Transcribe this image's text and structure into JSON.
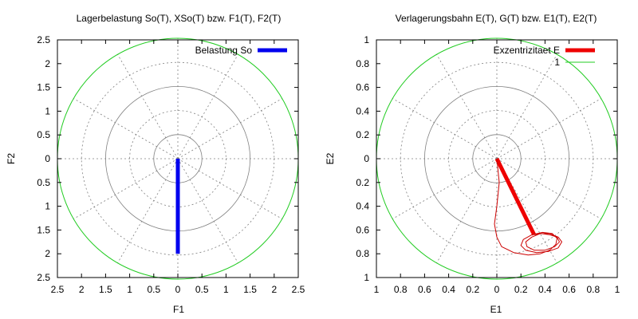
{
  "chart_data": [
    {
      "type": "polar-line",
      "title": "Lagerbelastung So(T), XSo(T) bzw. F1(T), F2(T)",
      "xlabel": "F1",
      "ylabel": "F2",
      "xlim": [
        -2.5,
        2.5
      ],
      "ylim": [
        -2.5,
        2.5
      ],
      "xtick_labels": [
        "2.5",
        "2",
        "1.5",
        "1",
        "0.5",
        "0",
        "0.5",
        "1",
        "1.5",
        "2",
        "2.5"
      ],
      "ytick_labels": [
        "2.5",
        "2",
        "1.5",
        "1",
        "0.5",
        "0",
        "0.5",
        "1",
        "1.5",
        "2",
        "2.5"
      ],
      "boundary_radius": 2.5,
      "boundary_color": "#22cc22",
      "legend_position": "top-right",
      "series": [
        {
          "name": "Belastung So",
          "color": "#0000ee",
          "line_width": "thick",
          "x": [
            0,
            0
          ],
          "y": [
            0,
            -2
          ]
        }
      ]
    },
    {
      "type": "polar-line",
      "title": "Verlagerungsbahn E(T), G(T) bzw. E1(T), E2(T)",
      "xlabel": "E1",
      "ylabel": "E2",
      "xlim": [
        -1,
        1
      ],
      "ylim": [
        -1,
        1
      ],
      "xtick_labels": [
        "1",
        "0.8",
        "0.6",
        "0.4",
        "0.2",
        "0",
        "0.2",
        "0.4",
        "0.6",
        "0.8",
        "1"
      ],
      "ytick_labels": [
        "1",
        "0.8",
        "0.6",
        "0.4",
        "0.2",
        "0",
        "0.2",
        "0.4",
        "0.6",
        "0.8",
        "1"
      ],
      "boundary_radius": 1,
      "boundary_color": "#22cc22",
      "legend_position": "top-right",
      "series": [
        {
          "name": "Exzentrizitaet E",
          "color": "#ee0000",
          "line_width": "thick",
          "x": [
            0,
            0.31
          ],
          "y": [
            0,
            -0.64
          ]
        },
        {
          "name": "1",
          "legend_color": "#22cc22",
          "color": "#cc0000",
          "line_width": "thin",
          "x": [
            0,
            0.02,
            0.0,
            -0.02,
            0.0,
            0.04,
            0.14,
            0.26,
            0.36,
            0.44,
            0.49,
            0.5,
            0.46,
            0.38,
            0.29,
            0.22,
            0.2,
            0.24,
            0.33,
            0.43,
            0.51,
            0.54,
            0.51,
            0.44,
            0.36,
            0.29,
            0.24,
            0.25,
            0.31,
            0.4,
            0.48,
            0.52,
            0.5,
            0.44,
            0.37,
            0.31
          ],
          "y": [
            0,
            -0.2,
            -0.4,
            -0.55,
            -0.66,
            -0.74,
            -0.79,
            -0.81,
            -0.8,
            -0.77,
            -0.72,
            -0.67,
            -0.63,
            -0.62,
            -0.64,
            -0.68,
            -0.73,
            -0.77,
            -0.79,
            -0.78,
            -0.75,
            -0.7,
            -0.66,
            -0.63,
            -0.63,
            -0.66,
            -0.7,
            -0.74,
            -0.77,
            -0.77,
            -0.74,
            -0.7,
            -0.66,
            -0.64,
            -0.63,
            -0.64
          ]
        }
      ]
    }
  ]
}
